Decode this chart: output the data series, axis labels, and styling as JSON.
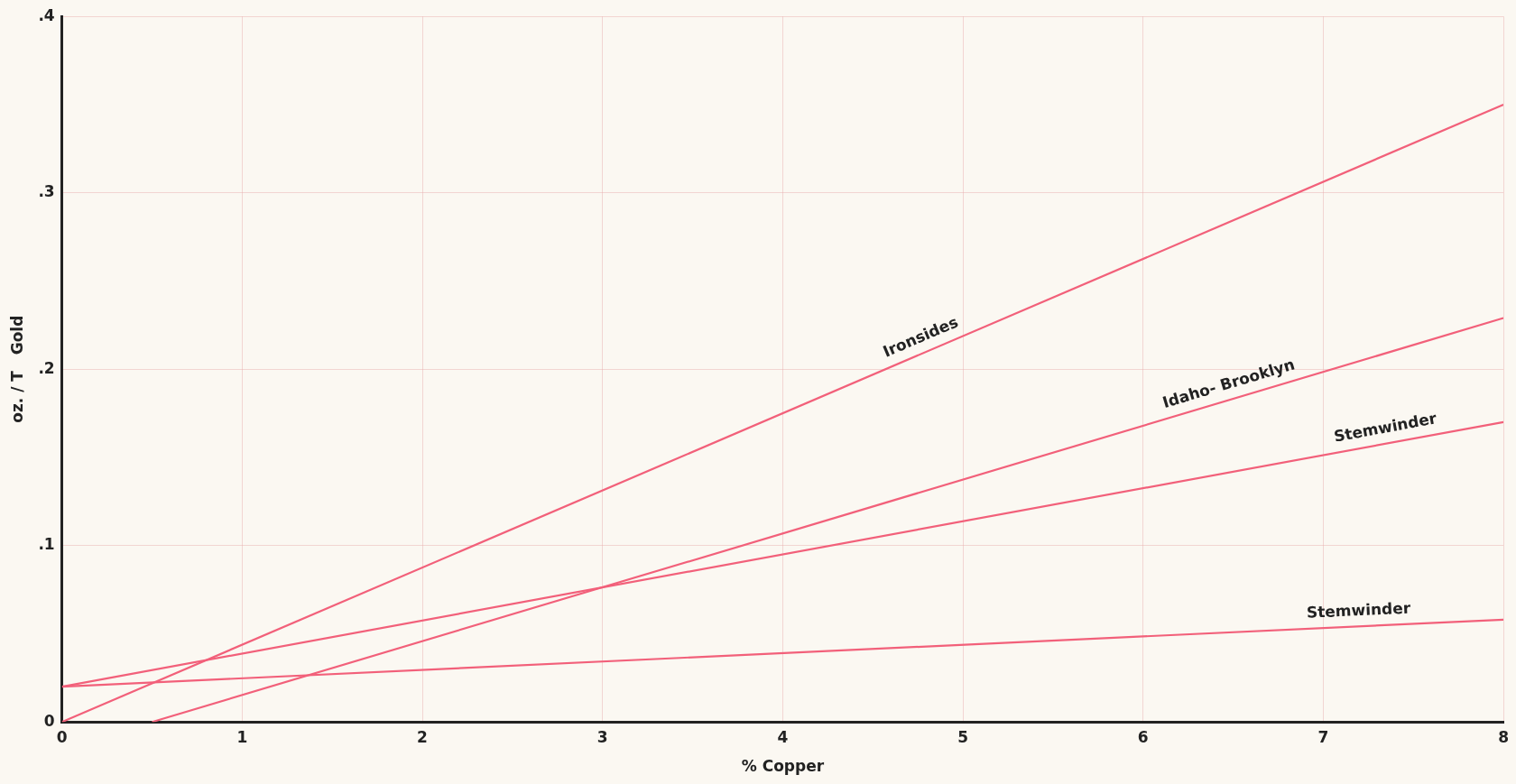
{
  "chart_data": {
    "type": "line",
    "xlabel": "% Copper",
    "ylabel": "oz. / T   Gold",
    "xlim": [
      0,
      8
    ],
    "xticks": [
      0,
      1,
      2,
      3,
      4,
      5,
      6,
      7,
      8
    ],
    "ylim": [
      0,
      0.4
    ],
    "yticks": [
      0,
      {
        "value": 0.1,
        "label": ".1"
      },
      {
        "value": 0.2,
        "label": ".2"
      },
      {
        "value": 0.3,
        "label": ".3"
      },
      {
        "value": 0.4,
        "label": ".4"
      }
    ],
    "grid": true,
    "legend": false,
    "marker": "none",
    "line_style": "solid",
    "series": [
      {
        "name": "Ironsides",
        "color": "#f2607a",
        "x": [
          0,
          8
        ],
        "values": [
          0,
          0.35
        ]
      },
      {
        "name": "Idaho- Brooklyn",
        "color": "#f2607a",
        "x": [
          0.5,
          8
        ],
        "values": [
          0,
          0.229
        ]
      },
      {
        "name": "Stemwinder",
        "color": "#f2607a",
        "x": [
          0,
          8
        ],
        "values": [
          0.02,
          0.17
        ]
      },
      {
        "name": "Stemwinder",
        "color": "#f2607a",
        "x": [
          0,
          8
        ],
        "values": [
          0.02,
          0.058
        ]
      }
    ]
  }
}
